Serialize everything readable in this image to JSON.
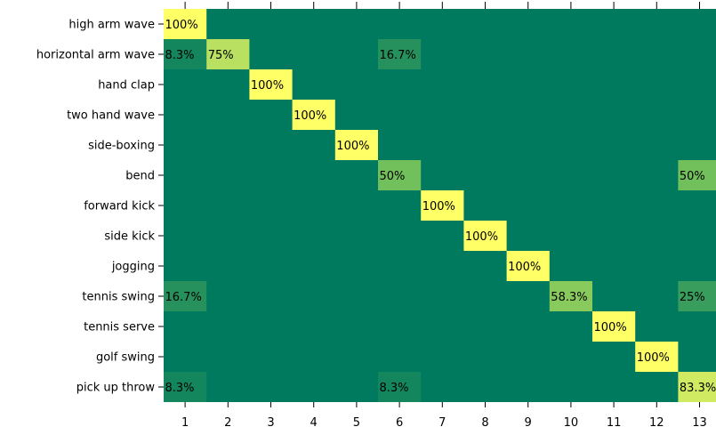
{
  "chart_data": {
    "type": "heatmap",
    "row_labels": [
      "high arm wave",
      "horizontal arm wave",
      "hand clap",
      "two hand wave",
      "side-boxing",
      "bend",
      "forward kick",
      "side kick",
      "jogging",
      "tennis swing",
      "tennis serve",
      "golf swing",
      "pick up  throw"
    ],
    "col_labels": [
      "1",
      "2",
      "3",
      "4",
      "5",
      "6",
      "7",
      "8",
      "9",
      "10",
      "11",
      "12",
      "13"
    ],
    "values": [
      [
        100,
        0,
        0,
        0,
        0,
        0,
        0,
        0,
        0,
        0,
        0,
        0,
        0
      ],
      [
        8.3,
        75,
        0,
        0,
        0,
        16.7,
        0,
        0,
        0,
        0,
        0,
        0,
        0
      ],
      [
        0,
        0,
        100,
        0,
        0,
        0,
        0,
        0,
        0,
        0,
        0,
        0,
        0
      ],
      [
        0,
        0,
        0,
        100,
        0,
        0,
        0,
        0,
        0,
        0,
        0,
        0,
        0
      ],
      [
        0,
        0,
        0,
        0,
        100,
        0,
        0,
        0,
        0,
        0,
        0,
        0,
        0
      ],
      [
        0,
        0,
        0,
        0,
        0,
        50,
        0,
        0,
        0,
        0,
        0,
        0,
        50
      ],
      [
        0,
        0,
        0,
        0,
        0,
        0,
        100,
        0,
        0,
        0,
        0,
        0,
        0
      ],
      [
        0,
        0,
        0,
        0,
        0,
        0,
        0,
        100,
        0,
        0,
        0,
        0,
        0
      ],
      [
        0,
        0,
        0,
        0,
        0,
        0,
        0,
        0,
        100,
        0,
        0,
        0,
        0
      ],
      [
        16.7,
        0,
        0,
        0,
        0,
        0,
        0,
        0,
        0,
        58.3,
        0,
        0,
        25
      ],
      [
        0,
        0,
        0,
        0,
        0,
        0,
        0,
        0,
        0,
        0,
        100,
        0,
        0
      ],
      [
        0,
        0,
        0,
        0,
        0,
        0,
        0,
        0,
        0,
        0,
        0,
        100,
        0
      ],
      [
        8.3,
        0,
        0,
        0,
        0,
        8.3,
        0,
        0,
        0,
        0,
        0,
        0,
        83.3
      ]
    ],
    "cell_labels": [
      [
        "100%",
        "",
        "",
        "",
        "",
        "",
        "",
        "",
        "",
        "",
        "",
        "",
        ""
      ],
      [
        "8.3%",
        "75%",
        "",
        "",
        "",
        "16.7%",
        "",
        "",
        "",
        "",
        "",
        "",
        ""
      ],
      [
        "",
        "",
        "100%",
        "",
        "",
        "",
        "",
        "",
        "",
        "",
        "",
        "",
        ""
      ],
      [
        "",
        "",
        "",
        "100%",
        "",
        "",
        "",
        "",
        "",
        "",
        "",
        "",
        ""
      ],
      [
        "",
        "",
        "",
        "",
        "100%",
        "",
        "",
        "",
        "",
        "",
        "",
        "",
        ""
      ],
      [
        "",
        "",
        "",
        "",
        "",
        "50%",
        "",
        "",
        "",
        "",
        "",
        "",
        "50%"
      ],
      [
        "",
        "",
        "",
        "",
        "",
        "",
        "100%",
        "",
        "",
        "",
        "",
        "",
        ""
      ],
      [
        "",
        "",
        "",
        "",
        "",
        "",
        "",
        "100%",
        "",
        "",
        "",
        "",
        ""
      ],
      [
        "",
        "",
        "",
        "",
        "",
        "",
        "",
        "",
        "100%",
        "",
        "",
        "",
        ""
      ],
      [
        "16.7%",
        "",
        "",
        "",
        "",
        "",
        "",
        "",
        "",
        "58.3%",
        "",
        "",
        "25%"
      ],
      [
        "",
        "",
        "",
        "",
        "",
        "",
        "",
        "",
        "",
        "",
        "100%",
        "",
        ""
      ],
      [
        "",
        "",
        "",
        "",
        "",
        "",
        "",
        "",
        "",
        "",
        "",
        "100%",
        ""
      ],
      [
        "8.3%",
        "",
        "",
        "",
        "",
        "8.3%",
        "",
        "",
        "",
        "",
        "",
        "",
        "83.3%"
      ]
    ],
    "value_range": [
      0,
      100
    ],
    "colors": {
      "low": "#007a5e",
      "mid": "#72c05b",
      "high": "#ffff66"
    },
    "grid": false,
    "legend": "none"
  }
}
